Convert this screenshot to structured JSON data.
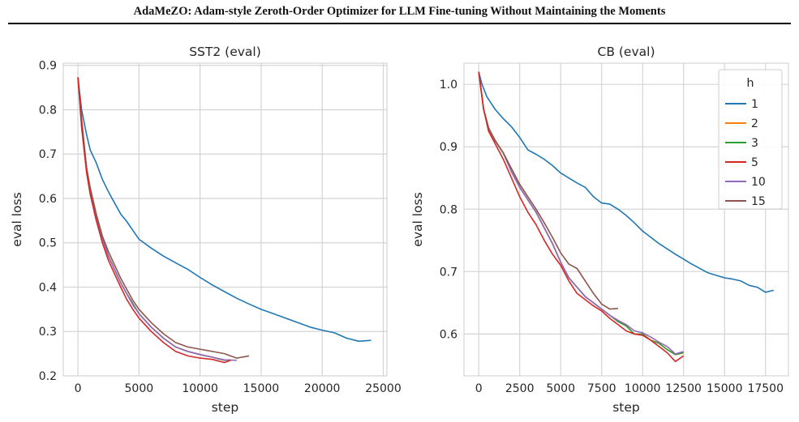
{
  "page": {
    "header": "AdaMeZO: Adam-style Zeroth-Order Optimizer for LLM Fine-tuning Without Maintaining the Moments"
  },
  "chart_data": [
    {
      "type": "line",
      "title": "SST2 (eval)",
      "xlabel": "step",
      "ylabel": "eval loss",
      "xlim": [
        -1200,
        25300
      ],
      "ylim": [
        0.2,
        0.905
      ],
      "xticks": [
        0,
        5000,
        10000,
        15000,
        20000,
        25000
      ],
      "yticks": [
        0.2,
        0.3,
        0.4,
        0.5,
        0.6,
        0.7,
        0.8,
        0.9
      ],
      "grid": true,
      "legend": null,
      "series": [
        {
          "name": "1",
          "color": "#1f77b4",
          "x": [
            0,
            300,
            700,
            1000,
            1500,
            2000,
            2500,
            3000,
            3500,
            4000,
            4500,
            5000,
            6000,
            7000,
            8000,
            9000,
            10000,
            11000,
            12000,
            13000,
            14000,
            15000,
            16000,
            17000,
            18000,
            19000,
            20000,
            21000,
            22000,
            23000,
            24000
          ],
          "y": [
            0.873,
            0.8,
            0.745,
            0.71,
            0.68,
            0.643,
            0.615,
            0.59,
            0.565,
            0.548,
            0.528,
            0.508,
            0.488,
            0.47,
            0.455,
            0.44,
            0.422,
            0.405,
            0.39,
            0.375,
            0.362,
            0.35,
            0.34,
            0.33,
            0.32,
            0.31,
            0.303,
            0.297,
            0.285,
            0.278,
            0.28
          ]
        },
        {
          "name": "2",
          "color": "#ff7f0e",
          "x": [
            0,
            300,
            700,
            1000,
            1500,
            2000,
            2500,
            3000,
            3500,
            4000,
            5000,
            6000,
            7000,
            8000,
            9000,
            10000,
            11000,
            12000,
            12500
          ],
          "y": [
            0.873,
            0.77,
            0.67,
            0.62,
            0.56,
            0.51,
            0.47,
            0.44,
            0.41,
            0.385,
            0.34,
            0.31,
            0.285,
            0.265,
            0.255,
            0.248,
            0.242,
            0.235,
            0.236
          ]
        },
        {
          "name": "3",
          "color": "#2ca02c",
          "x": [
            0,
            300,
            700,
            1000,
            1500,
            2000,
            2500,
            3000,
            3500,
            4000,
            5000,
            6000,
            7000,
            8000,
            9000,
            10000,
            11000,
            12000,
            12500
          ],
          "y": [
            0.873,
            0.77,
            0.67,
            0.62,
            0.56,
            0.51,
            0.47,
            0.44,
            0.41,
            0.385,
            0.34,
            0.31,
            0.285,
            0.265,
            0.255,
            0.248,
            0.242,
            0.235,
            0.236
          ]
        },
        {
          "name": "5",
          "color": "#d62728",
          "x": [
            0,
            300,
            700,
            1000,
            1500,
            2000,
            2500,
            3000,
            3500,
            4000,
            4500,
            5000,
            6000,
            7000,
            8000,
            9000,
            10000,
            11000,
            12000,
            12500
          ],
          "y": [
            0.873,
            0.76,
            0.66,
            0.61,
            0.55,
            0.5,
            0.46,
            0.43,
            0.4,
            0.372,
            0.35,
            0.33,
            0.3,
            0.275,
            0.255,
            0.245,
            0.24,
            0.237,
            0.23,
            0.235
          ]
        },
        {
          "name": "10",
          "color": "#9467bd",
          "x": [
            0,
            300,
            700,
            1000,
            1500,
            2000,
            2500,
            3000,
            3500,
            4000,
            4500,
            5000,
            6000,
            7000,
            8000,
            9000,
            10000,
            11000,
            12000,
            13000
          ],
          "y": [
            0.873,
            0.77,
            0.67,
            0.62,
            0.56,
            0.51,
            0.47,
            0.44,
            0.41,
            0.385,
            0.36,
            0.34,
            0.31,
            0.285,
            0.265,
            0.255,
            0.248,
            0.242,
            0.236,
            0.235
          ]
        },
        {
          "name": "15",
          "color": "#8c564b",
          "x": [
            0,
            300,
            700,
            1000,
            1500,
            2000,
            2500,
            3000,
            3500,
            4000,
            4500,
            5000,
            6000,
            7000,
            8000,
            9000,
            10000,
            11000,
            12000,
            13000,
            14000
          ],
          "y": [
            0.873,
            0.78,
            0.67,
            0.625,
            0.565,
            0.515,
            0.48,
            0.45,
            0.42,
            0.395,
            0.37,
            0.35,
            0.32,
            0.295,
            0.275,
            0.265,
            0.26,
            0.255,
            0.25,
            0.24,
            0.245
          ]
        }
      ]
    },
    {
      "type": "line",
      "title": "CB (eval)",
      "xlabel": "step",
      "ylabel": "eval loss",
      "xlim": [
        -900,
        18900
      ],
      "ylim": [
        0.533,
        1.034
      ],
      "xticks": [
        0,
        2500,
        5000,
        7500,
        10000,
        12500,
        15000,
        17500
      ],
      "yticks": [
        0.6,
        0.7,
        0.8,
        0.9,
        1.0
      ],
      "grid": true,
      "legend": {
        "title": "h",
        "placement": "top-right"
      },
      "series": [
        {
          "name": "1",
          "color": "#1f77b4",
          "x": [
            0,
            200,
            500,
            1000,
            1500,
            2000,
            2500,
            3000,
            3500,
            4000,
            4500,
            5000,
            5500,
            6000,
            6500,
            7000,
            7500,
            8000,
            8500,
            9000,
            9500,
            10000,
            11000,
            12000,
            13000,
            14000,
            15000,
            15500,
            16000,
            16500,
            17000,
            17500,
            18000
          ],
          "y": [
            1.02,
            1.0,
            0.98,
            0.96,
            0.945,
            0.932,
            0.915,
            0.895,
            0.888,
            0.88,
            0.87,
            0.858,
            0.85,
            0.842,
            0.835,
            0.82,
            0.81,
            0.808,
            0.8,
            0.79,
            0.778,
            0.765,
            0.745,
            0.728,
            0.712,
            0.698,
            0.69,
            0.688,
            0.685,
            0.678,
            0.675,
            0.667,
            0.67
          ]
        },
        {
          "name": "2",
          "color": "#ff7f0e",
          "x": [
            0,
            300,
            600,
            1000,
            1500,
            2000,
            2500,
            3000,
            3500,
            4000,
            4500,
            5000,
            5500,
            6000,
            6500,
            7000,
            7500,
            8000,
            8500,
            9000,
            9500,
            10000,
            10500,
            11000,
            11500,
            12000,
            12500
          ],
          "y": [
            1.02,
            0.96,
            0.93,
            0.91,
            0.89,
            0.86,
            0.835,
            0.815,
            0.795,
            0.77,
            0.745,
            0.715,
            0.69,
            0.675,
            0.66,
            0.65,
            0.64,
            0.63,
            0.62,
            0.613,
            0.6,
            0.6,
            0.59,
            0.585,
            0.575,
            0.567,
            0.57
          ]
        },
        {
          "name": "3",
          "color": "#2ca02c",
          "x": [
            0,
            300,
            600,
            1000,
            1500,
            2000,
            2500,
            3000,
            3500,
            4000,
            4500,
            5000,
            5500,
            6000,
            6500,
            7000,
            7500,
            8000,
            8500,
            9000,
            9500,
            10000,
            10500,
            11000,
            11500,
            12000,
            12500
          ],
          "y": [
            1.02,
            0.96,
            0.93,
            0.91,
            0.89,
            0.86,
            0.835,
            0.815,
            0.795,
            0.77,
            0.745,
            0.715,
            0.69,
            0.675,
            0.66,
            0.65,
            0.64,
            0.63,
            0.62,
            0.613,
            0.6,
            0.6,
            0.59,
            0.585,
            0.575,
            0.567,
            0.57
          ]
        },
        {
          "name": "5",
          "color": "#d62728",
          "x": [
            0,
            300,
            600,
            1000,
            1500,
            2000,
            2500,
            3000,
            3500,
            4000,
            4500,
            5000,
            5500,
            6000,
            6500,
            7000,
            7500,
            8000,
            8500,
            9000,
            9500,
            10000,
            10500,
            11000,
            11500,
            12000,
            12500
          ],
          "y": [
            1.02,
            0.96,
            0.925,
            0.905,
            0.88,
            0.85,
            0.82,
            0.795,
            0.775,
            0.75,
            0.728,
            0.71,
            0.685,
            0.665,
            0.655,
            0.645,
            0.637,
            0.625,
            0.615,
            0.605,
            0.6,
            0.598,
            0.59,
            0.58,
            0.57,
            0.556,
            0.565
          ]
        },
        {
          "name": "10",
          "color": "#9467bd",
          "x": [
            0,
            300,
            600,
            1000,
            1500,
            2000,
            2500,
            3000,
            3500,
            4000,
            4500,
            5000,
            5500,
            6000,
            6500,
            7000,
            7500,
            8000,
            8500,
            9000,
            9500,
            10000,
            10500,
            11000,
            11500,
            12000,
            12500
          ],
          "y": [
            1.02,
            0.96,
            0.93,
            0.91,
            0.89,
            0.86,
            0.835,
            0.815,
            0.795,
            0.77,
            0.745,
            0.715,
            0.69,
            0.675,
            0.66,
            0.65,
            0.64,
            0.63,
            0.622,
            0.615,
            0.605,
            0.602,
            0.595,
            0.587,
            0.58,
            0.568,
            0.572
          ]
        },
        {
          "name": "15",
          "color": "#8c564b",
          "x": [
            0,
            300,
            600,
            1000,
            1500,
            2000,
            2500,
            3000,
            3500,
            4000,
            4500,
            5000,
            5500,
            6000,
            6500,
            7000,
            7500,
            8000,
            8500
          ],
          "y": [
            1.02,
            0.96,
            0.93,
            0.91,
            0.89,
            0.865,
            0.84,
            0.82,
            0.8,
            0.778,
            0.755,
            0.73,
            0.712,
            0.705,
            0.685,
            0.665,
            0.648,
            0.64,
            0.641
          ]
        }
      ]
    }
  ]
}
